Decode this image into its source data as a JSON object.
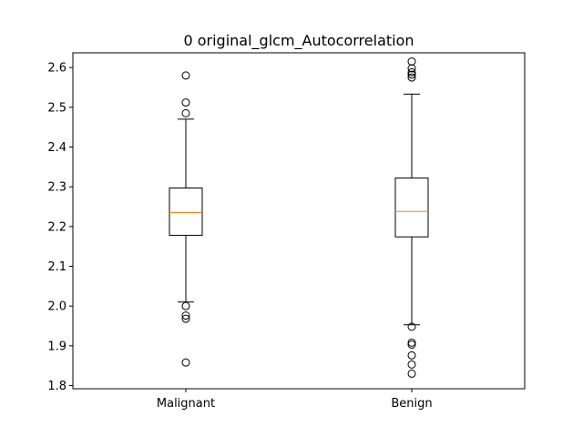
{
  "chart_data": {
    "type": "boxplot",
    "title": "0 original_glcm_Autocorrelation",
    "xlabel": "",
    "ylabel": "",
    "ylim": [
      1.792,
      2.637
    ],
    "yticks": [
      1.8,
      1.9,
      2.0,
      2.1,
      2.2,
      2.3,
      2.4,
      2.5,
      2.6
    ],
    "ytick_labels": [
      "1.8",
      "1.9",
      "2.0",
      "2.1",
      "2.2",
      "2.3",
      "2.4",
      "2.5",
      "2.6"
    ],
    "grid": false,
    "median_color": "#ff7f0e",
    "box_color": "#000000",
    "categories": [
      "Malignant",
      "Benign"
    ],
    "boxes": [
      {
        "label": "Malignant",
        "whisker_low": 2.01,
        "q1": 2.178,
        "median": 2.235,
        "q3": 2.297,
        "whisker_high": 2.47,
        "outliers": [
          2.58,
          2.512,
          2.485,
          2.0,
          1.976,
          1.968,
          1.858
        ]
      },
      {
        "label": "Benign",
        "whisker_low": 1.953,
        "q1": 2.174,
        "median": 2.238,
        "q3": 2.322,
        "whisker_high": 2.533,
        "outliers": [
          2.615,
          2.598,
          2.588,
          2.582,
          2.575,
          1.948,
          1.908,
          1.903,
          1.876,
          1.853,
          1.83
        ]
      }
    ]
  }
}
